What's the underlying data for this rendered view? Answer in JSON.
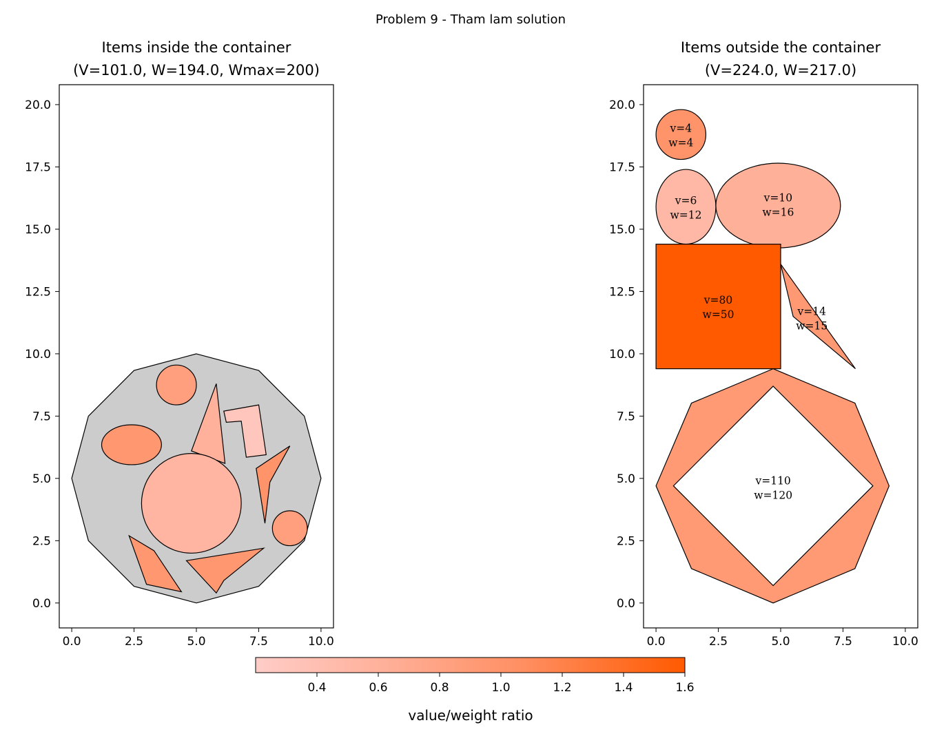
{
  "suptitle": "Problem 9 - Tham lam solution",
  "colorbar": {
    "label": "value/weight ratio",
    "min": 0.2,
    "max": 1.6,
    "ticks": [
      "0.4",
      "0.6",
      "0.8",
      "1.0",
      "1.2",
      "1.4",
      "1.6"
    ],
    "colors": [
      "#ffcdc8",
      "#ffad94",
      "#ff8f62",
      "#ff5a00"
    ]
  },
  "chart_data": [
    {
      "type": "shapes",
      "title_line1": "Items inside the container",
      "title_line2": "(V=101.0, W=194.0, Wmax=200)",
      "xlim": [
        -0.5,
        10.5
      ],
      "ylim": [
        -1,
        20.8
      ],
      "xticks": [
        "0.0",
        "2.5",
        "5.0",
        "7.5",
        "10.0"
      ],
      "yticks": [
        "0.0",
        "2.5",
        "5.0",
        "7.5",
        "10.0",
        "12.5",
        "15.0",
        "17.5",
        "20.0"
      ],
      "container": {
        "color": "#cccccc",
        "points": [
          [
            5,
            10
          ],
          [
            7.5,
            9.33
          ],
          [
            9.33,
            7.5
          ],
          [
            10,
            5
          ],
          [
            9.33,
            2.5
          ],
          [
            7.5,
            0.67
          ],
          [
            5,
            0
          ],
          [
            2.5,
            0.67
          ],
          [
            0.67,
            2.5
          ],
          [
            0,
            5
          ],
          [
            0.67,
            7.5
          ],
          [
            2.5,
            9.33
          ]
        ]
      },
      "items": [
        {
          "shape": "ellipse",
          "cx": 4.2,
          "cy": 8.75,
          "rx": 0.8,
          "ry": 0.8,
          "ratio": 0.85
        },
        {
          "shape": "polygon",
          "points": [
            [
              5.8,
              8.8
            ],
            [
              6.15,
              5.6
            ],
            [
              4.8,
              6.1
            ]
          ],
          "ratio": 0.6
        },
        {
          "shape": "polygon",
          "points": [
            [
              6.1,
              7.7
            ],
            [
              7.5,
              7.95
            ],
            [
              7.8,
              5.95
            ],
            [
              7.0,
              5.85
            ],
            [
              6.8,
              7.3
            ],
            [
              6.2,
              7.25
            ]
          ],
          "ratio": 0.3
        },
        {
          "shape": "ellipse",
          "cx": 2.4,
          "cy": 6.35,
          "rx": 1.2,
          "ry": 0.8,
          "ratio": 0.95
        },
        {
          "shape": "polygon",
          "points": [
            [
              7.4,
              5.4
            ],
            [
              8.75,
              6.3
            ],
            [
              7.95,
              4.85
            ],
            [
              7.75,
              3.2
            ]
          ],
          "ratio": 1.0
        },
        {
          "shape": "ellipse",
          "cx": 4.8,
          "cy": 4.0,
          "rx": 2.0,
          "ry": 2.0,
          "ratio": 0.55
        },
        {
          "shape": "ellipse",
          "cx": 8.75,
          "cy": 3.0,
          "rx": 0.7,
          "ry": 0.7,
          "ratio": 0.85
        },
        {
          "shape": "polygon",
          "points": [
            [
              2.3,
              2.7
            ],
            [
              3.3,
              2.1
            ],
            [
              4.4,
              0.45
            ],
            [
              3.0,
              0.75
            ]
          ],
          "ratio": 0.95
        },
        {
          "shape": "polygon",
          "points": [
            [
              4.6,
              1.7
            ],
            [
              7.7,
              2.2
            ],
            [
              6.1,
              0.9
            ],
            [
              5.8,
              0.4
            ]
          ],
          "ratio": 0.95
        }
      ]
    },
    {
      "type": "shapes",
      "title_line1": "Items outside the container",
      "title_line2": "(V=224.0, W=217.0)",
      "xlim": [
        -0.5,
        10.5
      ],
      "ylim": [
        -1,
        20.8
      ],
      "xticks": [
        "0.0",
        "2.5",
        "5.0",
        "7.5",
        "10.0"
      ],
      "yticks": [
        "0.0",
        "2.5",
        "5.0",
        "7.5",
        "10.0",
        "12.5",
        "15.0",
        "17.5",
        "20.0"
      ],
      "items": [
        {
          "shape": "ellipse",
          "cx": 1.0,
          "cy": 18.8,
          "rx": 1.0,
          "ry": 1.0,
          "ratio": 1.0,
          "label1": "v=4",
          "label2": "w=4",
          "lx": 1.0,
          "ly": 18.8
        },
        {
          "shape": "ellipse",
          "cx": 1.2,
          "cy": 15.9,
          "rx": 1.2,
          "ry": 1.5,
          "ratio": 0.5,
          "label1": "v=6",
          "label2": "w=12",
          "lx": 1.2,
          "ly": 15.9
        },
        {
          "shape": "ellipse",
          "cx": 4.9,
          "cy": 15.95,
          "rx": 2.5,
          "ry": 1.7,
          "ratio": 0.62,
          "label1": "v=10",
          "label2": "w=16",
          "lx": 4.9,
          "ly": 16.0
        },
        {
          "shape": "rect",
          "x": 0,
          "y": 9.4,
          "w": 5,
          "h": 5,
          "ratio": 1.6,
          "label1": "v=80",
          "label2": "w=50",
          "lx": 2.5,
          "ly": 11.9
        },
        {
          "shape": "polygon",
          "points": [
            [
              5,
              13.6
            ],
            [
              8,
              9.4
            ],
            [
              5.5,
              11.5
            ]
          ],
          "ratio": 0.93,
          "label1": "v=14",
          "label2": "w=15",
          "lx": 6.25,
          "ly": 11.45
        },
        {
          "shape": "octaring",
          "outer": [
            [
              4.7,
              9.4
            ],
            [
              7.98,
              8.02
            ],
            [
              9.35,
              4.7
            ],
            [
              7.98,
              1.38
            ],
            [
              4.7,
              0
            ],
            [
              1.42,
              1.38
            ],
            [
              0,
              4.7
            ],
            [
              1.42,
              8.02
            ]
          ],
          "inner": [
            [
              4.7,
              8.7
            ],
            [
              8.7,
              4.7
            ],
            [
              4.7,
              0.7
            ],
            [
              0.7,
              4.7
            ]
          ],
          "ratio": 0.92,
          "label1": "v=110",
          "label2": "w=120",
          "lx": 4.7,
          "ly": 4.65
        }
      ]
    }
  ]
}
